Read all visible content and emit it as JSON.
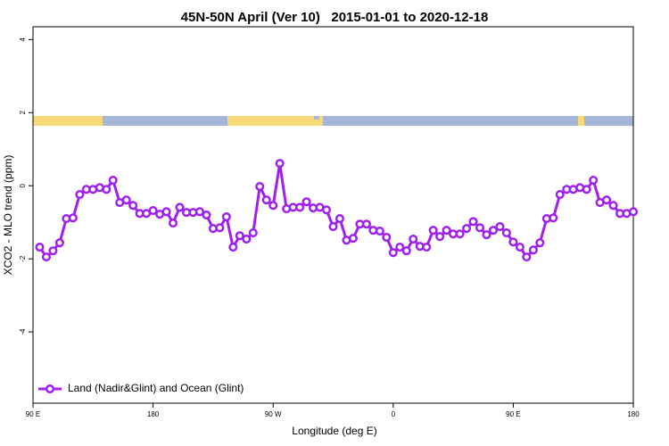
{
  "chart_data": {
    "type": "line",
    "title": "45N-50N April (Ver 10)   2015-01-01 to 2020-12-18",
    "xlabel": "Longitude (deg E)",
    "ylabel": "XCO2 - MLO trend (ppm)",
    "x": [
      95,
      100,
      105,
      110,
      115,
      120,
      125,
      130,
      135,
      140,
      145,
      150,
      155,
      160,
      165,
      170,
      175,
      180,
      185,
      190,
      195,
      200,
      205,
      210,
      215,
      220,
      225,
      230,
      235,
      240,
      245,
      250,
      255,
      260,
      265,
      270,
      275,
      280,
      285,
      290,
      295,
      300,
      305,
      310,
      315,
      320,
      325,
      330,
      335,
      340,
      345,
      350,
      355,
      360,
      365,
      370,
      375,
      380,
      385,
      390,
      395,
      400,
      405,
      410,
      415,
      420,
      425,
      430,
      435,
      440,
      445,
      450,
      455,
      460,
      465,
      470,
      475,
      480,
      485,
      490,
      495,
      500,
      505,
      510,
      515,
      520,
      525,
      530,
      535,
      540
    ],
    "series": [
      {
        "name": "Land (Nadir&Glint) and Ocean (Glint)",
        "color": "#a020f0",
        "values": [
          -1.68,
          -1.95,
          -1.78,
          -1.56,
          -0.9,
          -0.88,
          -0.24,
          -0.1,
          -0.1,
          -0.05,
          -0.1,
          0.15,
          -0.46,
          -0.39,
          -0.54,
          -0.76,
          -0.76,
          -0.68,
          -0.78,
          -0.71,
          -1.02,
          -0.59,
          -0.73,
          -0.73,
          -0.71,
          -0.8,
          -1.17,
          -1.15,
          -0.85,
          -1.68,
          -1.37,
          -1.46,
          -1.29,
          -0.02,
          -0.39,
          -0.54,
          0.61,
          -0.63,
          -0.59,
          -0.59,
          -0.44,
          -0.61,
          -0.59,
          -0.66,
          -1.12,
          -0.9,
          -1.49,
          -1.44,
          -1.05,
          -1.05,
          -1.22,
          -1.24,
          -1.41,
          -1.83,
          -1.68,
          -1.78,
          -1.46,
          -1.66,
          -1.68,
          -1.22,
          -1.39,
          -1.22,
          -1.32,
          -1.32,
          -1.17,
          -0.98,
          -1.15,
          -1.34,
          -1.22,
          -1.12,
          -1.29,
          -1.54,
          -1.68,
          -1.95,
          -1.76,
          -1.56,
          -0.9,
          -0.88,
          -0.24,
          -0.1,
          -0.1,
          -0.05,
          -0.1,
          0.15,
          -0.46,
          -0.39,
          -0.54,
          -0.76,
          -0.76,
          -0.71
        ]
      }
    ],
    "xlim": [
      90,
      540
    ],
    "xticks": [
      {
        "value": 90,
        "label": "90 E"
      },
      {
        "value": 180,
        "label": "180"
      },
      {
        "value": 270,
        "label": "90 W"
      },
      {
        "value": 360,
        "label": "0"
      },
      {
        "value": 450,
        "label": "90 E"
      },
      {
        "value": 540,
        "label": "180"
      }
    ],
    "ylim": [
      -5.95,
      4.35
    ],
    "yticks": [
      -4,
      -2,
      0,
      2,
      4
    ],
    "legend": "bottomleft"
  }
}
